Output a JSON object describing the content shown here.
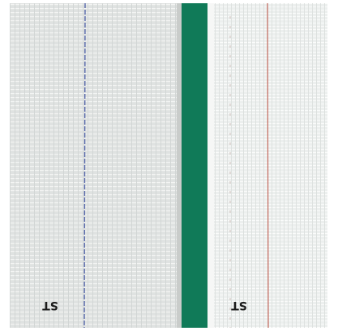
{
  "strips": [
    {
      "label": "ST"
    },
    {
      "label": "ST"
    }
  ]
}
